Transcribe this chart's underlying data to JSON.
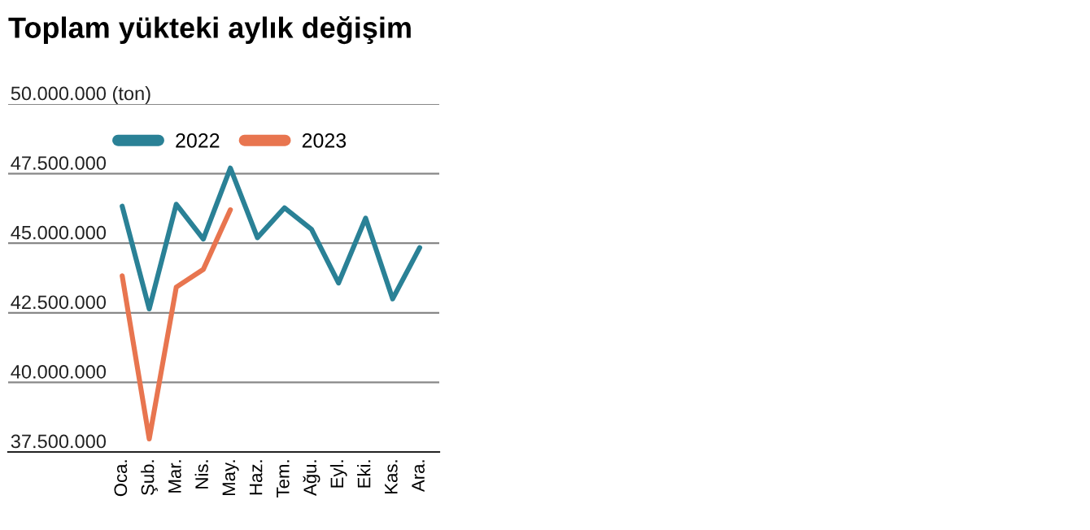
{
  "chart_data": {
    "type": "line",
    "title": "Toplam yükteki aylık değişim",
    "categories": [
      "Oca.",
      "Şub.",
      "Mar.",
      "Nis.",
      "May.",
      "Haz.",
      "Tem.",
      "Ağu.",
      "Eyl.",
      "Eki.",
      "Kas.",
      "Ara."
    ],
    "series": [
      {
        "name": "2022",
        "color": "#2a8196",
        "values": [
          46330000,
          42640000,
          46400000,
          45150000,
          47700000,
          45200000,
          46270000,
          45500000,
          43570000,
          45900000,
          43000000,
          44840000
        ]
      },
      {
        "name": "2023",
        "color": "#e8754f",
        "values": [
          43830000,
          37970000,
          43420000,
          44060000,
          46200000,
          null,
          null,
          null,
          null,
          null,
          null,
          null
        ]
      }
    ],
    "ylim": [
      37500000,
      50000000
    ],
    "yticks": [
      {
        "value": 37500000,
        "label": "37.500.000"
      },
      {
        "value": 40000000,
        "label": "40.000.000"
      },
      {
        "value": 42500000,
        "label": "42.500.000"
      },
      {
        "value": 45000000,
        "label": "45.000.000"
      },
      {
        "value": 47500000,
        "label": "47.500.000"
      },
      {
        "value": 50000000,
        "label": "50.000.000 (ton)"
      }
    ],
    "grid": "y",
    "legend": "top",
    "marker": "none",
    "line_style": "solid"
  }
}
